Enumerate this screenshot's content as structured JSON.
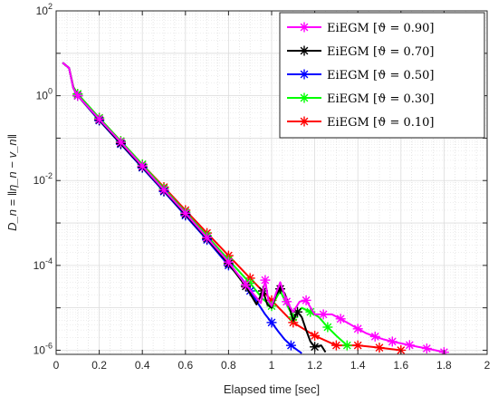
{
  "chart_data": {
    "type": "line",
    "xlabel": "Elapsed time [sec]",
    "ylabel": "D_n = ‖η_n − v_n‖",
    "yscale": "log",
    "xlim": [
      0,
      2
    ],
    "ylim": [
      8e-07,
      100
    ],
    "x_ticks": [
      0,
      0.2,
      0.4,
      0.6,
      0.8,
      1,
      1.2,
      1.4,
      1.6,
      1.8,
      2
    ],
    "x_tick_labels": [
      "0",
      "0.2",
      "0.4",
      "0.6",
      "0.8",
      "1",
      "1.2",
      "1.4",
      "1.6",
      "1.8",
      "2"
    ],
    "y_ticks": [
      {
        "value": 1e-06,
        "base": "10",
        "exp": "-6"
      },
      {
        "value": 0.0001,
        "base": "10",
        "exp": "-4"
      },
      {
        "value": 0.01,
        "base": "10",
        "exp": "-2"
      },
      {
        "value": 1,
        "base": "10",
        "exp": "0"
      },
      {
        "value": 100,
        "base": "10",
        "exp": "2"
      }
    ],
    "grid": true,
    "minor_grid": true,
    "legend_position": "top-right",
    "series": [
      {
        "name": "EiEGM [ϑ = 0.90]",
        "color": "#ff00ff",
        "marker": "star",
        "x": [
          0.03,
          0.06,
          0.08,
          0.1,
          0.2,
          0.3,
          0.4,
          0.5,
          0.6,
          0.7,
          0.8,
          0.88,
          0.95,
          0.97,
          0.985,
          1.0,
          1.02,
          1.04,
          1.07,
          1.1,
          1.13,
          1.16,
          1.2,
          1.24,
          1.28,
          1.32,
          1.36,
          1.4,
          1.44,
          1.48,
          1.52,
          1.56,
          1.6,
          1.64,
          1.68,
          1.72,
          1.76,
          1.8
        ],
        "y": [
          6.0,
          4.5,
          1.5,
          1.0,
          0.28,
          0.08,
          0.022,
          0.006,
          0.0017,
          0.00045,
          0.00012,
          3.5e-05,
          1.3e-05,
          4.5e-05,
          1.5e-05,
          1.1e-05,
          2.2e-05,
          4e-05,
          1.4e-05,
          8e-06,
          1.4e-05,
          1.5e-05,
          7e-06,
          7e-06,
          7e-06,
          5.5e-06,
          4.2e-06,
          3.2e-06,
          2.5e-06,
          2.1e-06,
          1.8e-06,
          1.6e-06,
          1.45e-06,
          1.32e-06,
          1.2e-06,
          1.1e-06,
          1e-06,
          9e-07
        ]
      },
      {
        "name": "EiEGM [ϑ = 0.70]",
        "color": "#000000",
        "marker": "star",
        "x": [
          0.03,
          0.06,
          0.08,
          0.1,
          0.2,
          0.3,
          0.4,
          0.5,
          0.6,
          0.7,
          0.8,
          0.88,
          0.93,
          0.96,
          0.98,
          1.0,
          1.02,
          1.04,
          1.06,
          1.08,
          1.1,
          1.12,
          1.14,
          1.16,
          1.18,
          1.2,
          1.23,
          1.25
        ],
        "y": [
          6.0,
          4.5,
          1.5,
          1.0,
          0.27,
          0.075,
          0.021,
          0.0058,
          0.0016,
          0.00043,
          0.00011,
          3.2e-05,
          1.2e-05,
          2.5e-05,
          1.2e-05,
          1e-05,
          2e-05,
          2.8e-05,
          2.2e-05,
          1.2e-05,
          5e-06,
          8e-06,
          6e-06,
          3e-06,
          1.6e-06,
          1.2e-06,
          1.3e-06,
          9e-07
        ]
      },
      {
        "name": "EiEGM [ϑ = 0.50]",
        "color": "#0000ff",
        "marker": "star",
        "x": [
          0.03,
          0.06,
          0.08,
          0.1,
          0.2,
          0.3,
          0.4,
          0.5,
          0.6,
          0.7,
          0.8,
          0.86,
          0.9,
          0.94,
          0.97,
          1.0,
          1.03,
          1.06,
          1.09,
          1.12,
          1.14
        ],
        "y": [
          6.0,
          4.5,
          1.5,
          1.0,
          0.26,
          0.072,
          0.02,
          0.0055,
          0.0015,
          0.0004,
          0.0001,
          5e-05,
          2.5e-05,
          1.2e-05,
          7e-06,
          4.5e-06,
          2.8e-06,
          1.8e-06,
          1.3e-06,
          1e-06,
          8.5e-07
        ]
      },
      {
        "name": "EiEGM [ϑ = 0.30]",
        "color": "#00ff00",
        "marker": "star",
        "x": [
          0.03,
          0.06,
          0.08,
          0.1,
          0.2,
          0.3,
          0.4,
          0.5,
          0.6,
          0.7,
          0.8,
          0.9,
          0.96,
          1.0,
          1.04,
          1.07,
          1.1,
          1.14,
          1.18,
          1.22,
          1.26,
          1.3,
          1.33,
          1.35
        ],
        "y": [
          6.0,
          4.5,
          1.6,
          1.1,
          0.3,
          0.085,
          0.024,
          0.0065,
          0.0018,
          0.0005,
          0.000135,
          3.8e-05,
          1.6e-05,
          1.1e-05,
          2.5e-05,
          1.2e-05,
          6e-06,
          1e-05,
          8e-06,
          6e-06,
          3.5e-06,
          2.2e-06,
          1.6e-06,
          1.3e-06
        ]
      },
      {
        "name": "EiEGM [ϑ = 0.10]",
        "color": "#ff0000",
        "marker": "star",
        "x": [
          0.03,
          0.06,
          0.08,
          0.1,
          0.2,
          0.3,
          0.4,
          0.5,
          0.6,
          0.7,
          0.8,
          0.9,
          1.0,
          1.1,
          1.2,
          1.3,
          1.4,
          1.5,
          1.6
        ],
        "y": [
          6.0,
          4.5,
          1.6,
          1.1,
          0.3,
          0.085,
          0.024,
          0.007,
          0.002,
          0.00058,
          0.00017,
          5e-05,
          1.5e-05,
          4.5e-06,
          2.2e-06,
          1.3e-06,
          1.3e-06,
          1.15e-06,
          1e-06
        ]
      }
    ]
  }
}
